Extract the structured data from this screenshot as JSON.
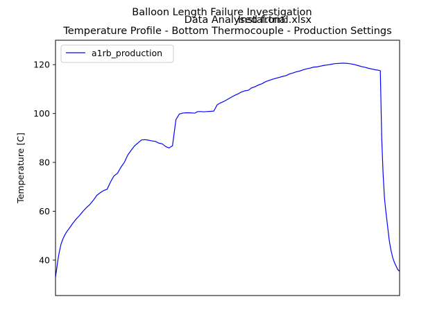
{
  "titles": {
    "suptitle": "Balloon Length Failure Investigation",
    "overlap_a": "Data Analysed from:",
    "overlap_b": "Instal.trial.xlsx",
    "main": "Temperature Profile - Bottom Thermocouple - Production Settings"
  },
  "chart_data": {
    "type": "line",
    "title": "Temperature Profile - Bottom Thermocouple - Production Settings",
    "xlabel": "",
    "ylabel": "Temperature [C]",
    "xlim": [
      0,
      100
    ],
    "ylim": [
      25.5,
      130
    ],
    "x_ticks_visible": false,
    "yticks": [
      40,
      60,
      80,
      100,
      120
    ],
    "grid": false,
    "legend": {
      "placement": "upper-left",
      "entries": [
        "a1rb_production"
      ]
    },
    "series": [
      {
        "name": "a1rb_production",
        "color": "#0000ff",
        "x": [
          0,
          0.4,
          0.8,
          1.2,
          1.6,
          2.1,
          2.6,
          3.2,
          4,
          5,
          6,
          7,
          8,
          9,
          10,
          11,
          12,
          13,
          14,
          15,
          16,
          17,
          18,
          19,
          20,
          21,
          22,
          23,
          24,
          25,
          26,
          27,
          28,
          29,
          30,
          31,
          32,
          33,
          34,
          35,
          36,
          37,
          38,
          39,
          40,
          40.6,
          41,
          41.4,
          42.3,
          43.1,
          44,
          45,
          46,
          47,
          48,
          49,
          50,
          51,
          52,
          53,
          54,
          55,
          56,
          57,
          58,
          59,
          60,
          61,
          62,
          63,
          64,
          65,
          66,
          67,
          68,
          69,
          70,
          71,
          72,
          73,
          74,
          75,
          76,
          77,
          78,
          79,
          80,
          81,
          82,
          83,
          84,
          85,
          86,
          87,
          88,
          89,
          90,
          91,
          92,
          93,
          94,
          94.4,
          94.8,
          95.2,
          95.6,
          96,
          96.5,
          97,
          97.5,
          98,
          98.5,
          99,
          99.5,
          100
        ],
        "values": [
          33,
          37,
          41,
          44,
          46.5,
          48.5,
          50,
          51.5,
          53,
          55,
          56.8,
          58.3,
          60,
          61.5,
          62.8,
          64.5,
          66.5,
          67.6,
          68.5,
          69,
          72,
          74.5,
          75.5,
          78,
          80,
          83,
          85,
          86.8,
          88,
          89.2,
          89.3,
          89.1,
          88.8,
          88.6,
          87.9,
          87.6,
          86.5,
          85.9,
          86.8,
          97.5,
          99.8,
          100.2,
          100.3,
          100.3,
          100.2,
          100.2,
          100.6,
          100.8,
          100.8,
          100.7,
          100.8,
          100.9,
          101,
          103.6,
          104.4,
          105,
          105.8,
          106.6,
          107.4,
          108,
          108.8,
          109.3,
          109.5,
          110.5,
          111,
          111.7,
          112.2,
          113,
          113.5,
          114,
          114.4,
          114.8,
          115.2,
          115.5,
          116.2,
          116.6,
          117.1,
          117.4,
          117.9,
          118.3,
          118.6,
          119,
          119.1,
          119.4,
          119.7,
          119.9,
          120.1,
          120.4,
          120.5,
          120.6,
          120.6,
          120.5,
          120.3,
          120,
          119.6,
          119.2,
          118.9,
          118.5,
          118.2,
          117.9,
          117.7,
          117.5,
          90,
          75.5,
          65.5,
          60,
          54,
          48,
          44,
          41,
          39,
          37.5,
          36,
          35.5
        ]
      }
    ]
  }
}
